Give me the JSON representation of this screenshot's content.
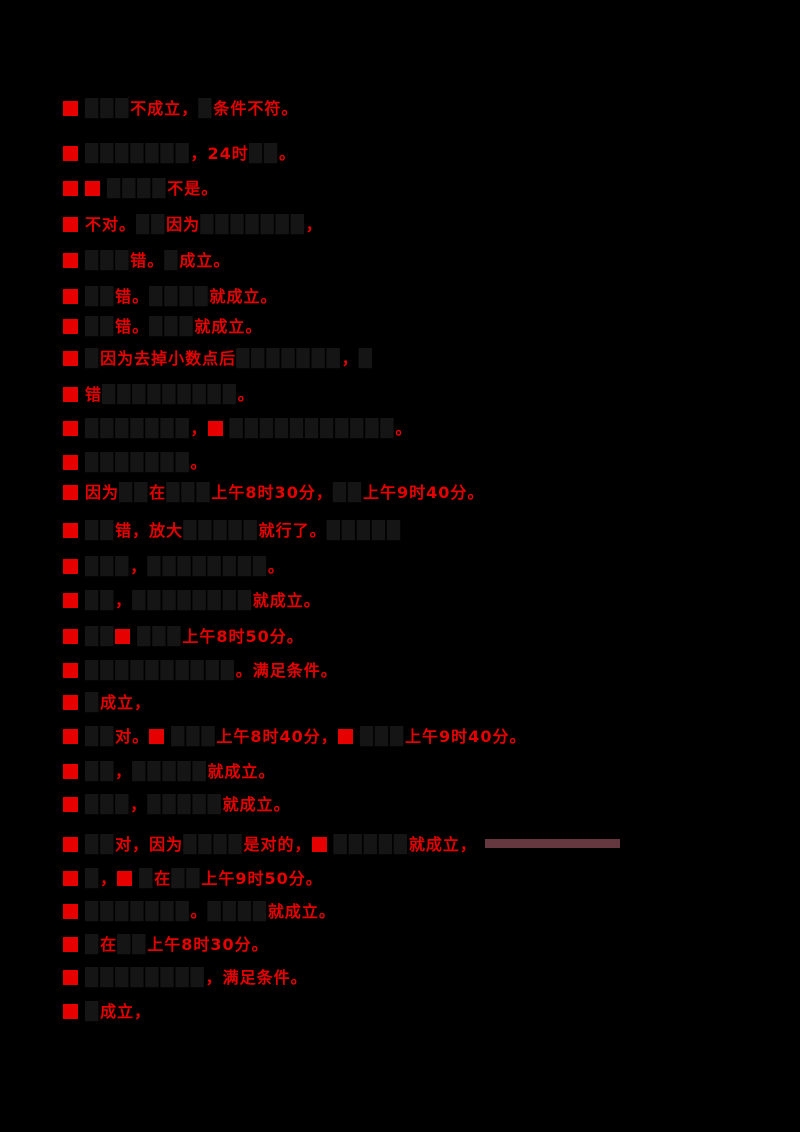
{
  "document": {
    "background": "#000000",
    "red_accent": "#e60000",
    "dark_text_color": "#151515",
    "smear_color": "#64383e",
    "lines": [
      {
        "segments": [
          {
            "k": "box"
          },
          {
            "k": "dark",
            "t": "███"
          },
          {
            "k": "red",
            "t": "不成立，"
          },
          {
            "k": "dark",
            "t": "█"
          },
          {
            "k": "red",
            "t": "条件不符。"
          }
        ]
      },
      {
        "segments": [
          {
            "k": "box"
          },
          {
            "k": "dark",
            "t": "███████"
          },
          {
            "k": "red",
            "t": "，24时"
          },
          {
            "k": "dark",
            "t": "██"
          },
          {
            "k": "red",
            "t": "。"
          }
        ]
      },
      {
        "segments": [
          {
            "k": "box"
          },
          {
            "k": "box"
          },
          {
            "k": "dark",
            "t": "████"
          },
          {
            "k": "red",
            "t": "不是。"
          }
        ]
      },
      {
        "segments": [
          {
            "k": "box"
          },
          {
            "k": "red",
            "t": "不对。"
          },
          {
            "k": "dark",
            "t": "██"
          },
          {
            "k": "red",
            "t": "因为"
          },
          {
            "k": "dark",
            "t": "███████"
          },
          {
            "k": "red",
            "t": "，"
          }
        ]
      },
      {
        "segments": [
          {
            "k": "box"
          },
          {
            "k": "dark",
            "t": "███"
          },
          {
            "k": "red",
            "t": "错。"
          },
          {
            "k": "dark",
            "t": "█"
          },
          {
            "k": "red",
            "t": "成立。"
          }
        ]
      },
      {
        "segments": [
          {
            "k": "box"
          },
          {
            "k": "dark",
            "t": "██"
          },
          {
            "k": "red",
            "t": "错。"
          },
          {
            "k": "dark",
            "t": "████"
          },
          {
            "k": "red",
            "t": "就成立。"
          }
        ]
      },
      {
        "segments": [
          {
            "k": "box"
          },
          {
            "k": "dark",
            "t": "██"
          },
          {
            "k": "red",
            "t": "错。"
          },
          {
            "k": "dark",
            "t": "███"
          },
          {
            "k": "red",
            "t": "就成立。"
          }
        ]
      },
      {
        "segments": [
          {
            "k": "box"
          },
          {
            "k": "dark",
            "t": "█"
          },
          {
            "k": "red",
            "t": "因为去掉小数点后"
          },
          {
            "k": "dark",
            "t": "███████"
          },
          {
            "k": "red",
            "t": "，"
          },
          {
            "k": "dark",
            "t": "█"
          }
        ]
      },
      {
        "segments": [
          {
            "k": "box"
          },
          {
            "k": "red",
            "t": "错"
          },
          {
            "k": "dark",
            "t": "█████████"
          },
          {
            "k": "red",
            "t": "。"
          }
        ]
      },
      {
        "segments": [
          {
            "k": "box"
          },
          {
            "k": "dark",
            "t": "███████"
          },
          {
            "k": "red",
            "t": "，"
          },
          {
            "k": "box"
          },
          {
            "k": "dark",
            "t": "███████████"
          },
          {
            "k": "red",
            "t": "。"
          }
        ]
      },
      {
        "segments": [
          {
            "k": "box"
          },
          {
            "k": "dark",
            "t": "███████"
          },
          {
            "k": "red",
            "t": "。"
          }
        ]
      },
      {
        "segments": [
          {
            "k": "box"
          },
          {
            "k": "red",
            "t": "因为"
          },
          {
            "k": "dark",
            "t": "██"
          },
          {
            "k": "red",
            "t": "在"
          },
          {
            "k": "dark",
            "t": "███"
          },
          {
            "k": "red",
            "t": "上午8时30分，"
          },
          {
            "k": "dark",
            "t": "██"
          },
          {
            "k": "red",
            "t": "上午9时40分。"
          }
        ]
      },
      {
        "segments": [
          {
            "k": "box"
          },
          {
            "k": "dark",
            "t": "██"
          },
          {
            "k": "red",
            "t": "错，"
          },
          {
            "k": "red",
            "t": "放大"
          },
          {
            "k": "dark",
            "t": "█████"
          },
          {
            "k": "red",
            "t": "就行了。"
          },
          {
            "k": "dark",
            "t": "█████"
          }
        ]
      },
      {
        "segments": [
          {
            "k": "box"
          },
          {
            "k": "dark",
            "t": "███"
          },
          {
            "k": "red",
            "t": "，"
          },
          {
            "k": "dark",
            "t": "████████"
          },
          {
            "k": "red",
            "t": "。"
          }
        ]
      },
      {
        "segments": [
          {
            "k": "box"
          },
          {
            "k": "dark",
            "t": "██"
          },
          {
            "k": "red",
            "t": "，"
          },
          {
            "k": "dark",
            "t": "████████"
          },
          {
            "k": "red",
            "t": "就成立。"
          }
        ]
      },
      {
        "segments": [
          {
            "k": "box"
          },
          {
            "k": "dark",
            "t": "██"
          },
          {
            "k": "box"
          },
          {
            "k": "dark",
            "t": "███"
          },
          {
            "k": "red",
            "t": "上午8时50分。"
          }
        ]
      },
      {
        "segments": [
          {
            "k": "box"
          },
          {
            "k": "dark",
            "t": "██████████"
          },
          {
            "k": "red",
            "t": "。"
          },
          {
            "k": "red",
            "t": "满足条件。"
          }
        ]
      },
      {
        "segments": [
          {
            "k": "box"
          },
          {
            "k": "dark",
            "t": "█"
          },
          {
            "k": "red",
            "t": "成立，"
          }
        ]
      },
      {
        "segments": [
          {
            "k": "box"
          },
          {
            "k": "dark",
            "t": "██"
          },
          {
            "k": "red",
            "t": "对。"
          },
          {
            "k": "box"
          },
          {
            "k": "dark",
            "t": "███"
          },
          {
            "k": "red",
            "t": "上午8时40分，"
          },
          {
            "k": "box"
          },
          {
            "k": "dark",
            "t": "███"
          },
          {
            "k": "red",
            "t": "上午9时40分。"
          }
        ]
      },
      {
        "segments": [
          {
            "k": "box"
          },
          {
            "k": "dark",
            "t": "██"
          },
          {
            "k": "red",
            "t": "，"
          },
          {
            "k": "dark",
            "t": "█████"
          },
          {
            "k": "red",
            "t": "就成立。"
          }
        ]
      },
      {
        "segments": [
          {
            "k": "box"
          },
          {
            "k": "dark",
            "t": "███"
          },
          {
            "k": "red",
            "t": "，"
          },
          {
            "k": "dark",
            "t": "█████"
          },
          {
            "k": "red",
            "t": "就成立。"
          }
        ]
      },
      {
        "segments": [
          {
            "k": "box"
          },
          {
            "k": "dark",
            "t": "██"
          },
          {
            "k": "red",
            "t": "对，"
          },
          {
            "k": "red",
            "t": "因为"
          },
          {
            "k": "dark",
            "t": "████"
          },
          {
            "k": "red",
            "t": "是对的，"
          },
          {
            "k": "box"
          },
          {
            "k": "dark",
            "t": "█████"
          },
          {
            "k": "red",
            "t": "就成立，"
          },
          {
            "k": "bar"
          }
        ]
      },
      {
        "segments": [
          {
            "k": "box"
          },
          {
            "k": "dark",
            "t": "█"
          },
          {
            "k": "red",
            "t": "，"
          },
          {
            "k": "box"
          },
          {
            "k": "dark",
            "t": "█"
          },
          {
            "k": "red",
            "t": "在"
          },
          {
            "k": "dark",
            "t": "██"
          },
          {
            "k": "red",
            "t": "上午9时50分。"
          }
        ]
      },
      {
        "segments": [
          {
            "k": "box"
          },
          {
            "k": "dark",
            "t": "███████"
          },
          {
            "k": "red",
            "t": "。"
          },
          {
            "k": "dark",
            "t": "████"
          },
          {
            "k": "red",
            "t": "就成立。"
          }
        ]
      },
      {
        "segments": [
          {
            "k": "box"
          },
          {
            "k": "dark",
            "t": "█"
          },
          {
            "k": "red",
            "t": "在"
          },
          {
            "k": "dark",
            "t": "██"
          },
          {
            "k": "red",
            "t": "上午8时30分。"
          }
        ]
      },
      {
        "segments": [
          {
            "k": "box"
          },
          {
            "k": "dark",
            "t": "████████"
          },
          {
            "k": "red",
            "t": "，满足条件。"
          }
        ]
      },
      {
        "segments": [
          {
            "k": "box"
          },
          {
            "k": "dark",
            "t": "█"
          },
          {
            "k": "red",
            "t": "成立，"
          }
        ]
      }
    ]
  }
}
